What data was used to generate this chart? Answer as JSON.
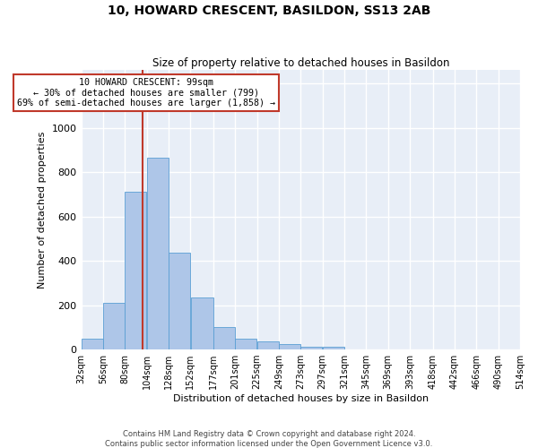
{
  "title": "10, HOWARD CRESCENT, BASILDON, SS13 2AB",
  "subtitle": "Size of property relative to detached houses in Basildon",
  "xlabel": "Distribution of detached houses by size in Basildon",
  "ylabel": "Number of detached properties",
  "bar_color": "#aec6e8",
  "bar_edge_color": "#5a9fd4",
  "background_color": "#e8eef7",
  "grid_color": "#ffffff",
  "vline_x": 99,
  "vline_color": "#c0392b",
  "annotation_text": "10 HOWARD CRESCENT: 99sqm\n← 30% of detached houses are smaller (799)\n69% of semi-detached houses are larger (1,858) →",
  "annotation_box_color": "#ffffff",
  "annotation_box_edge_color": "#c0392b",
  "bin_edges": [
    32,
    56,
    80,
    104,
    128,
    152,
    177,
    201,
    225,
    249,
    273,
    297,
    321,
    345,
    369,
    393,
    418,
    442,
    466,
    490,
    514
  ],
  "bin_heights": [
    50,
    210,
    710,
    865,
    435,
    233,
    103,
    50,
    38,
    25,
    14,
    12,
    0,
    0,
    0,
    0,
    0,
    0,
    0,
    0
  ],
  "yticks": [
    0,
    200,
    400,
    600,
    800,
    1000,
    1200
  ],
  "ylim": [
    0,
    1260
  ],
  "xtick_labels": [
    "32sqm",
    "56sqm",
    "80sqm",
    "104sqm",
    "128sqm",
    "152sqm",
    "177sqm",
    "201sqm",
    "225sqm",
    "249sqm",
    "273sqm",
    "297sqm",
    "321sqm",
    "345sqm",
    "369sqm",
    "393sqm",
    "418sqm",
    "442sqm",
    "466sqm",
    "490sqm",
    "514sqm"
  ],
  "footer_lines": [
    "Contains HM Land Registry data © Crown copyright and database right 2024.",
    "Contains public sector information licensed under the Open Government Licence v3.0."
  ],
  "figsize": [
    6.0,
    5.0
  ],
  "dpi": 100
}
